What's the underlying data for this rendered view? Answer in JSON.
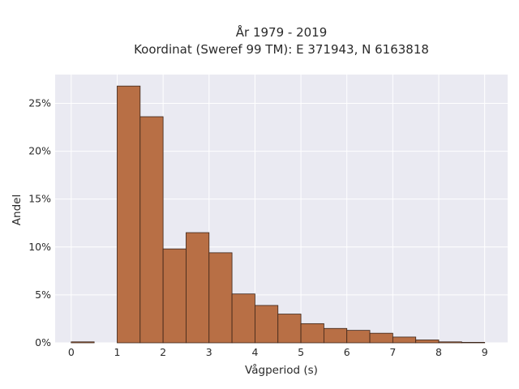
{
  "chart_data": {
    "type": "bar",
    "title_lines": [
      "År 1979 - 2019",
      "Koordinat (Sweref 99 TM): E 371943, N 6163818"
    ],
    "xlabel": "Vågperiod (s)",
    "ylabel": "Andel",
    "xlim": [
      -0.35,
      9.5
    ],
    "ylim": [
      0,
      0.28
    ],
    "x_ticks": [
      0,
      1,
      2,
      3,
      4,
      5,
      6,
      7,
      8,
      9
    ],
    "x_tick_labels": [
      "0",
      "1",
      "2",
      "3",
      "4",
      "5",
      "6",
      "7",
      "8",
      "9"
    ],
    "y_ticks": [
      0,
      0.05,
      0.1,
      0.15,
      0.2,
      0.25
    ],
    "y_tick_labels": [
      "0%",
      "5%",
      "10%",
      "15%",
      "20%",
      "25%"
    ],
    "bin_width": 0.5,
    "bins": [
      {
        "start": 0.0,
        "value": 0.001
      },
      {
        "start": 0.5,
        "value": 0.0
      },
      {
        "start": 1.0,
        "value": 0.268
      },
      {
        "start": 1.5,
        "value": 0.236
      },
      {
        "start": 2.0,
        "value": 0.098
      },
      {
        "start": 2.5,
        "value": 0.115
      },
      {
        "start": 3.0,
        "value": 0.094
      },
      {
        "start": 3.5,
        "value": 0.051
      },
      {
        "start": 4.0,
        "value": 0.039
      },
      {
        "start": 4.5,
        "value": 0.03
      },
      {
        "start": 5.0,
        "value": 0.02
      },
      {
        "start": 5.5,
        "value": 0.015
      },
      {
        "start": 6.0,
        "value": 0.013
      },
      {
        "start": 6.5,
        "value": 0.01
      },
      {
        "start": 7.0,
        "value": 0.006
      },
      {
        "start": 7.5,
        "value": 0.003
      },
      {
        "start": 8.0,
        "value": 0.001
      },
      {
        "start": 8.5,
        "value": 0.0005
      }
    ],
    "grid": true,
    "legend": "none"
  },
  "colors": {
    "bar_fill": "#b86f45",
    "bar_edge": "#3b2418",
    "plot_background": "#eaeaf2",
    "grid": "#ffffff"
  }
}
